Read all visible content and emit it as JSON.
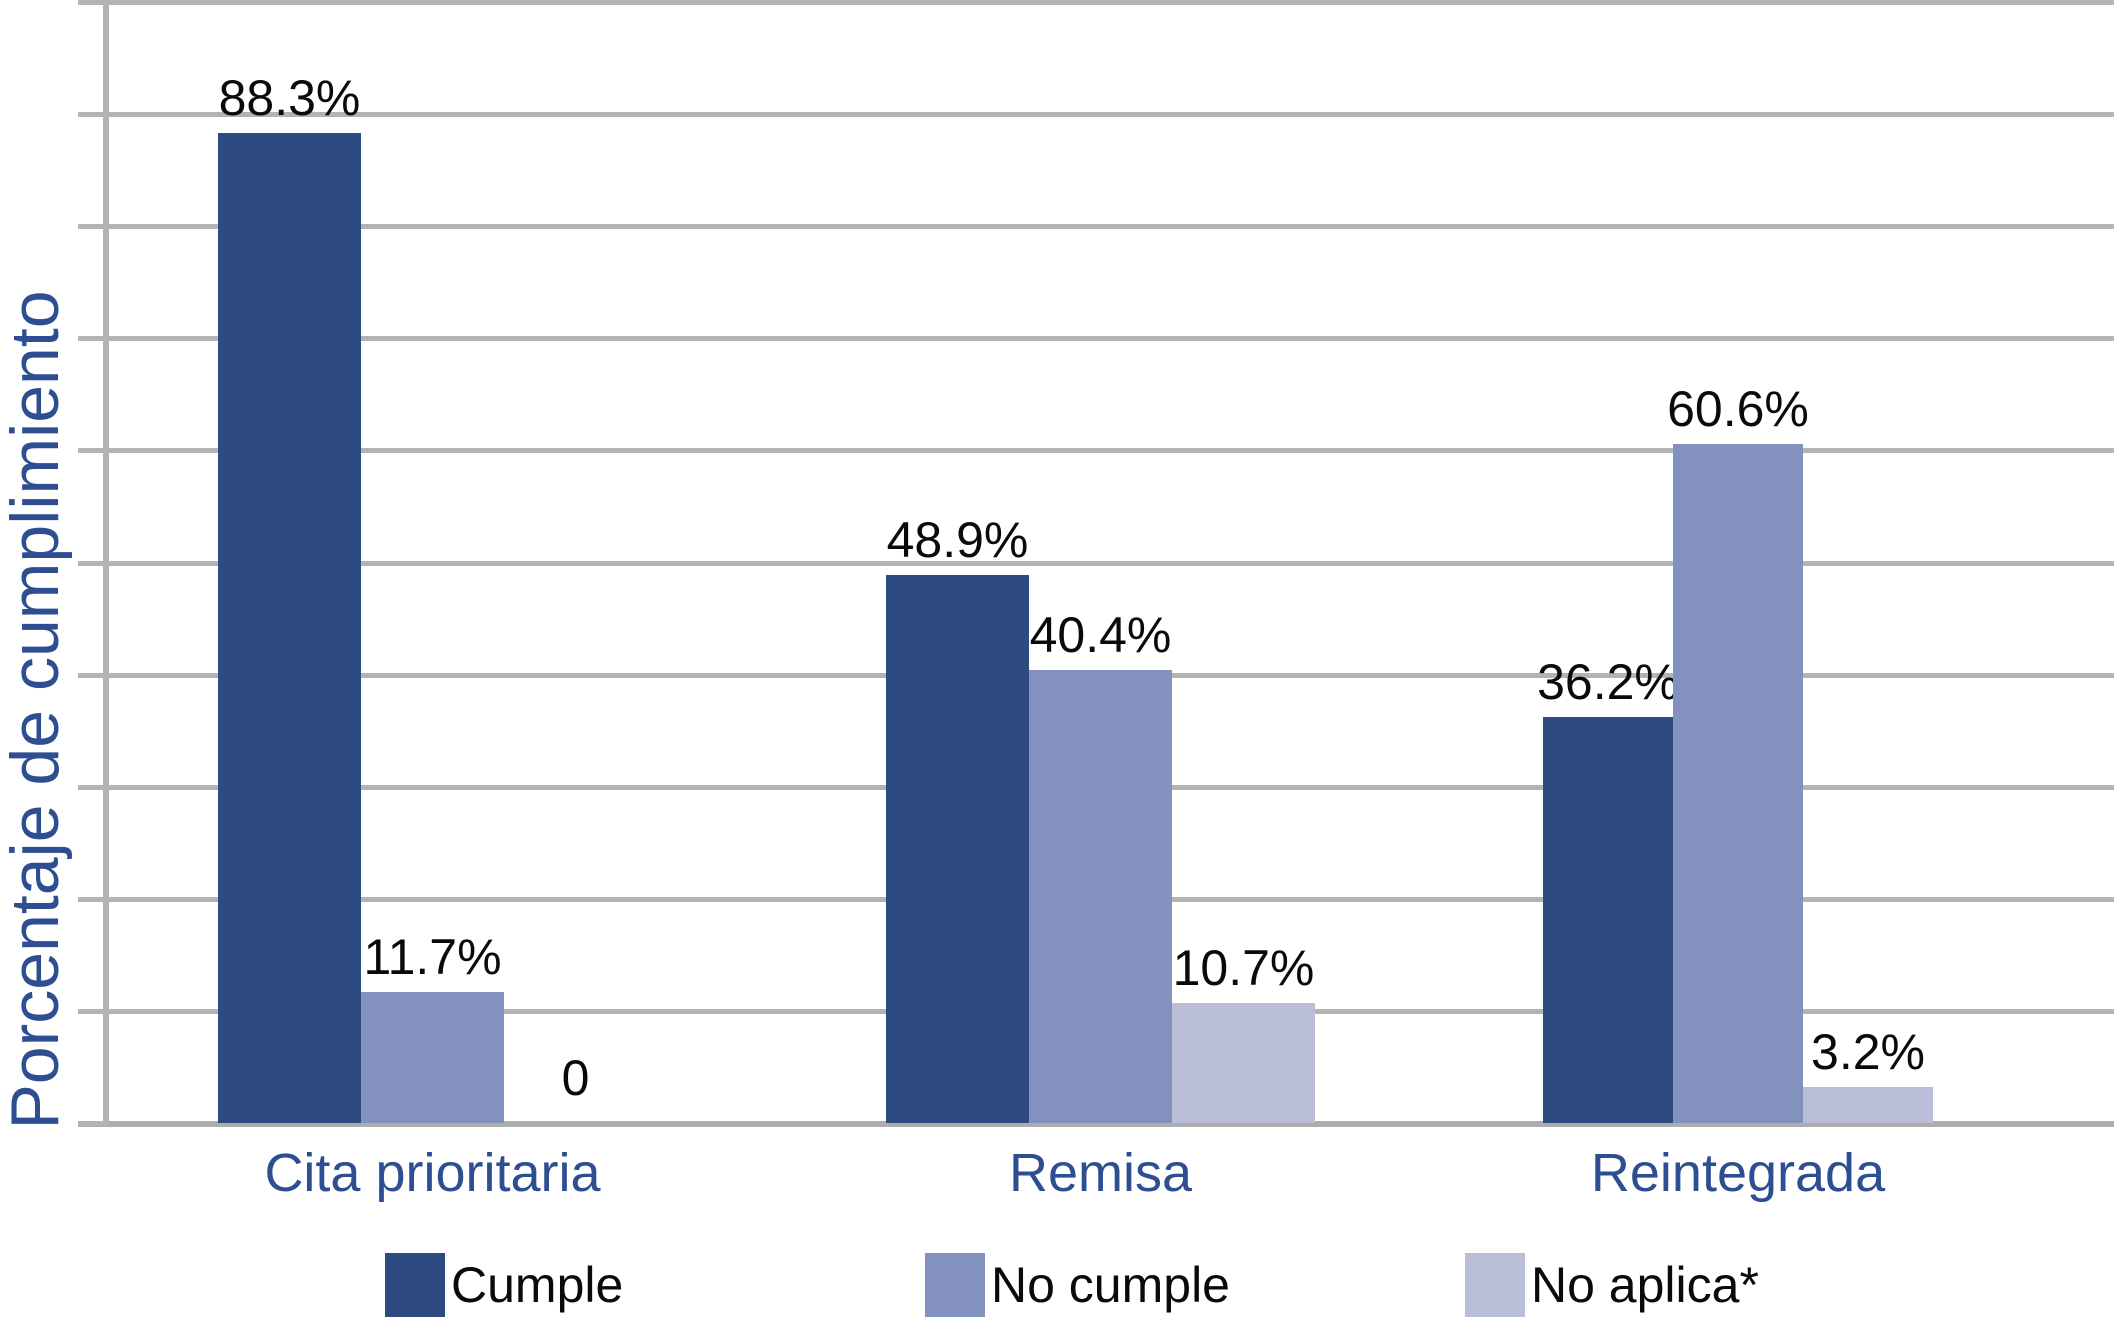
{
  "chart_data": {
    "type": "bar",
    "title": "",
    "xlabel": "",
    "ylabel": "Porcentaje de cumplimiento",
    "categories": [
      "Cita prioritaria",
      "Remisa",
      "Reintegrada"
    ],
    "series": [
      {
        "name": "Cumple",
        "color": "#2d4b80",
        "values": [
          88.3,
          48.9,
          36.2
        ],
        "display": [
          "88.3%",
          "48.9%",
          "36.2%"
        ]
      },
      {
        "name": "No cumple",
        "color": "#8291bd",
        "values": [
          11.7,
          40.4,
          60.6
        ],
        "display": [
          "11.7%",
          "40.4%",
          "60.6%"
        ]
      },
      {
        "name": "No aplica*",
        "color": "#b9bdd8",
        "values": [
          0,
          10.7,
          3.2
        ],
        "display": [
          "0",
          "10.7%",
          "3.2%"
        ]
      }
    ],
    "ylim": [
      0,
      100
    ],
    "grid": {
      "horizontal": true,
      "step_percent": 10,
      "color": "#b3b3b3"
    },
    "y_tick_labels_visible": false,
    "legend_position": "bottom",
    "value_label_color": "#0a0a0a",
    "axis_text_color": "#2d4e91"
  }
}
